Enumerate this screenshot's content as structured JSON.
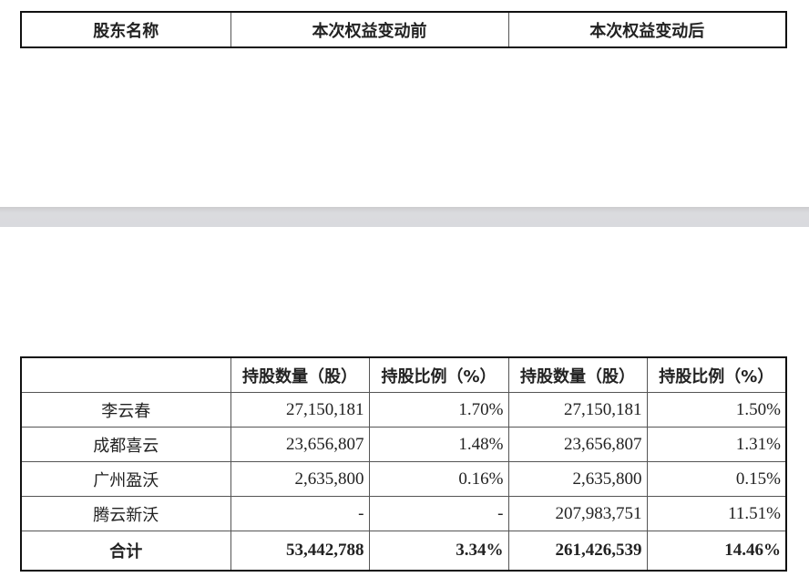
{
  "top_table": {
    "headers": [
      "股东名称",
      "本次权益变动前",
      "本次权益变动后"
    ]
  },
  "bottom_table": {
    "headers": [
      "",
      "持股数量（股）",
      "持股比例（%）",
      "持股数量（股）",
      "持股比例（%）"
    ],
    "rows": [
      [
        "李云春",
        "27,150,181",
        "1.70%",
        "27,150,181",
        "1.50%"
      ],
      [
        "成都喜云",
        "23,656,807",
        "1.48%",
        "23,656,807",
        "1.31%"
      ],
      [
        "广州盈沃",
        "2,635,800",
        "0.16%",
        "2,635,800",
        "0.15%"
      ],
      [
        "腾云新沃",
        "-",
        "-",
        "207,983,751",
        "11.51%"
      ]
    ],
    "total": [
      "合计",
      "53,442,788",
      "3.34%",
      "261,426,539",
      "14.46%"
    ]
  }
}
